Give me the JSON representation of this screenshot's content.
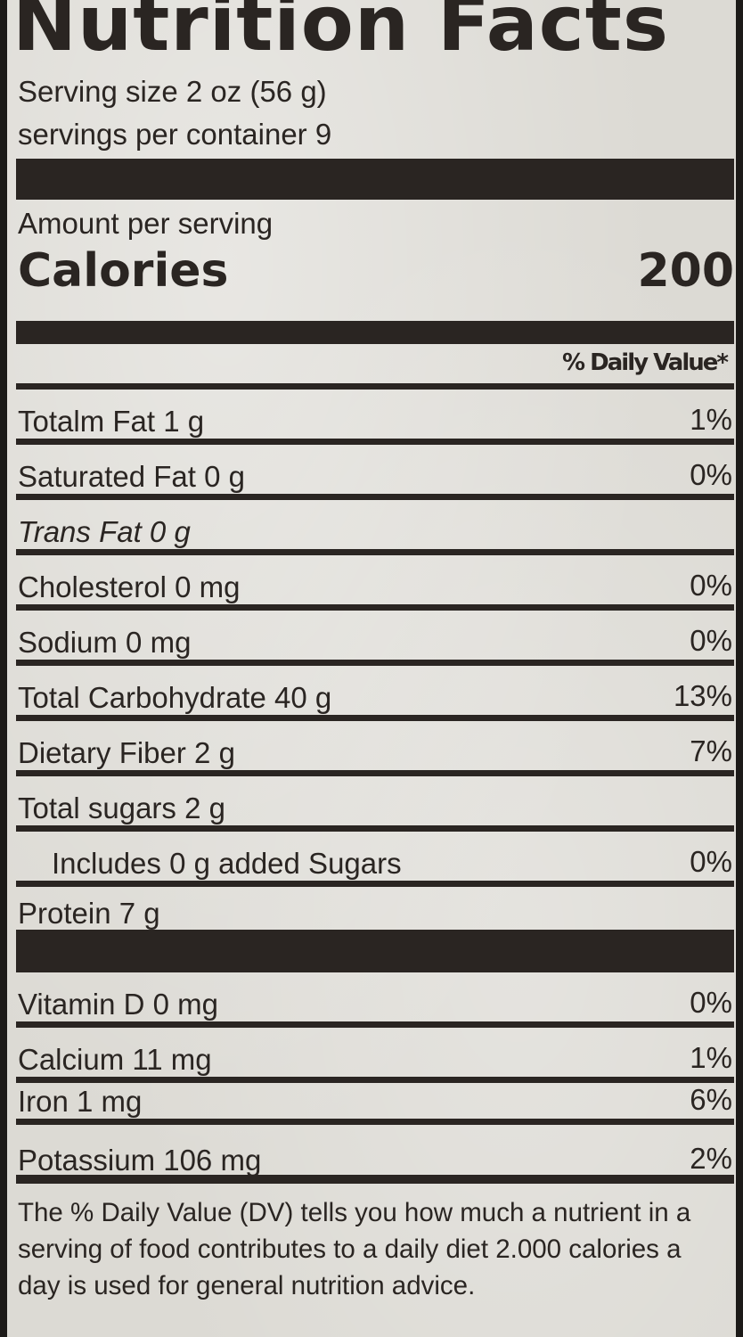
{
  "title": "Nutrition Facts",
  "serving_size": "Serving size 2 oz (56 g)",
  "servings_per_container": "servings per container 9",
  "amount_per_serving": "Amount per serving",
  "calories": {
    "label": "Calories",
    "value": "200"
  },
  "dv_header": "% Daily Value*",
  "nutrients": [
    {
      "name": "Totalm Fat 1 g",
      "dv": "1%"
    },
    {
      "name": "Saturated Fat 0 g",
      "dv": "0%"
    },
    {
      "name": "Trans Fat 0 g",
      "dv": ""
    },
    {
      "name": "Cholesterol 0 mg",
      "dv": "0%"
    },
    {
      "name": "Sodium 0 mg",
      "dv": "0%"
    },
    {
      "name": "Total Carbohydrate 40 g",
      "dv": "13%"
    },
    {
      "name": "Dietary Fiber 2 g",
      "dv": "7%"
    },
    {
      "name": "Total sugars 2 g",
      "dv": ""
    },
    {
      "name": "Includes 0 g added Sugars",
      "dv": "0%"
    },
    {
      "name": "Protein 7 g",
      "dv": ""
    }
  ],
  "vitamins": [
    {
      "name": "Vitamin D 0 mg",
      "dv": "0%"
    },
    {
      "name": "Calcium 11 mg",
      "dv": "1%"
    },
    {
      "name": "Iron 1 mg",
      "dv": "6%"
    },
    {
      "name": "Potassium 106 mg",
      "dv": "2%"
    }
  ],
  "footnote": "The % Daily Value (DV) tells you how much a nutrient in a serving of food contributes to a daily diet 2.000 calories a day is used for general nutrition advice."
}
